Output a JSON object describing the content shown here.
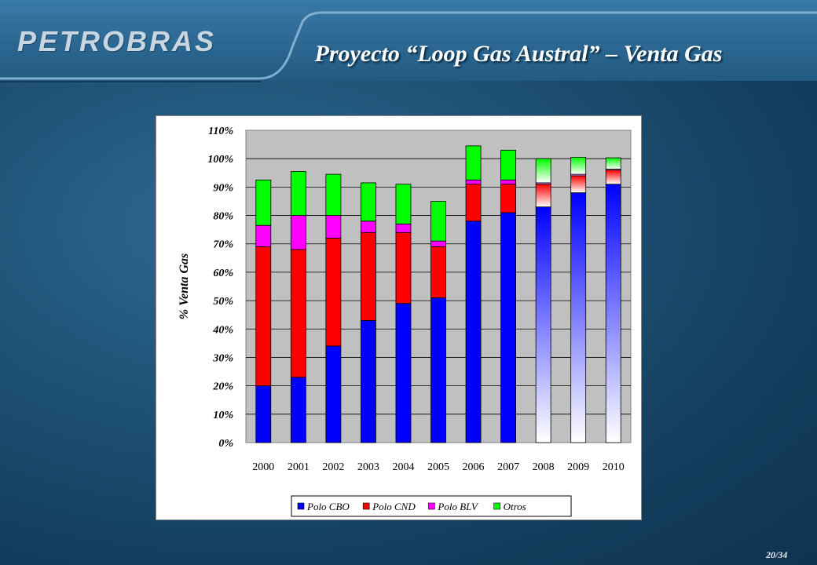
{
  "header": {
    "logo": "PETROBRAS",
    "title": "Proyecto “Loop Gas Austral” – Venta Gas"
  },
  "footer": {
    "page": "20/34"
  },
  "colors": {
    "cbo": "#0000ff",
    "cnd": "#ff0000",
    "blv": "#ff00ff",
    "otros": "#00ff00",
    "plot_bg": "#c0c0c0"
  },
  "chart_data": {
    "type": "bar",
    "stacked": true,
    "ylabel": "% Venta Gas",
    "xlabel": "",
    "ylim": [
      0,
      110
    ],
    "yticks": [
      "0%",
      "10%",
      "20%",
      "30%",
      "40%",
      "50%",
      "60%",
      "70%",
      "80%",
      "90%",
      "100%",
      "110%"
    ],
    "grid": true,
    "legend_position": "bottom",
    "categories": [
      "2000",
      "2001",
      "2002",
      "2003",
      "2004",
      "2005",
      "2006",
      "2007",
      "2008",
      "2009",
      "2010"
    ],
    "projected_categories": [
      "2008",
      "2009",
      "2010"
    ],
    "series": [
      {
        "name": "Polo CBO",
        "values": [
          20,
          23,
          34,
          43,
          49,
          51,
          78,
          81,
          83,
          88,
          91
        ]
      },
      {
        "name": "Polo CND",
        "values": [
          49,
          45,
          38,
          31,
          25,
          18,
          13,
          10,
          8,
          6,
          5
        ]
      },
      {
        "name": "Polo BLV",
        "values": [
          7.5,
          12,
          8,
          4,
          3,
          2,
          1.5,
          1.5,
          0.5,
          0.5,
          0.3
        ]
      },
      {
        "name": "Otros",
        "values": [
          16,
          15.5,
          14.5,
          13.5,
          14,
          14,
          12,
          10.5,
          8.5,
          6,
          4
        ]
      }
    ]
  }
}
